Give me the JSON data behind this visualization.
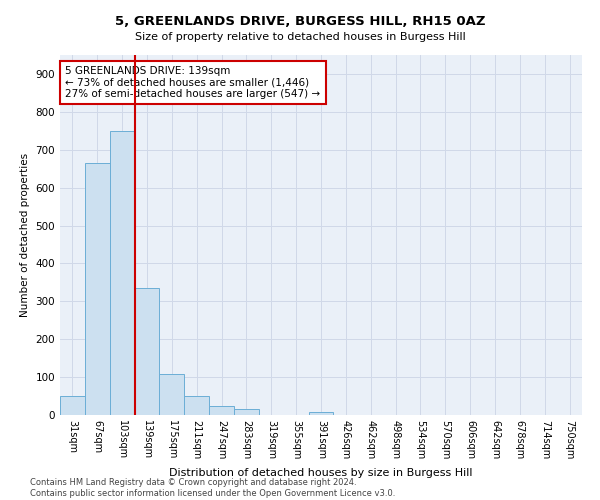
{
  "title1": "5, GREENLANDS DRIVE, BURGESS HILL, RH15 0AZ",
  "title2": "Size of property relative to detached houses in Burgess Hill",
  "xlabel": "Distribution of detached houses by size in Burgess Hill",
  "ylabel": "Number of detached properties",
  "bar_labels": [
    "31sqm",
    "67sqm",
    "103sqm",
    "139sqm",
    "175sqm",
    "211sqm",
    "247sqm",
    "283sqm",
    "319sqm",
    "355sqm",
    "391sqm",
    "426sqm",
    "462sqm",
    "498sqm",
    "534sqm",
    "570sqm",
    "606sqm",
    "642sqm",
    "678sqm",
    "714sqm",
    "750sqm"
  ],
  "bar_values": [
    50,
    665,
    750,
    335,
    108,
    50,
    25,
    17,
    0,
    0,
    8,
    0,
    0,
    0,
    0,
    0,
    0,
    0,
    0,
    0,
    0
  ],
  "bar_color": "#cce0f0",
  "bar_edge_color": "#6baed6",
  "vline_x": 2.5,
  "vline_color": "#cc0000",
  "annotation_text": "5 GREENLANDS DRIVE: 139sqm\n← 73% of detached houses are smaller (1,446)\n27% of semi-detached houses are larger (547) →",
  "annotation_box_color": "#ffffff",
  "annotation_box_edge": "#cc0000",
  "ylim": [
    0,
    950
  ],
  "yticks": [
    0,
    100,
    200,
    300,
    400,
    500,
    600,
    700,
    800,
    900
  ],
  "grid_color": "#d0d8e8",
  "background_color": "#eaf0f8",
  "footer": "Contains HM Land Registry data © Crown copyright and database right 2024.\nContains public sector information licensed under the Open Government Licence v3.0."
}
